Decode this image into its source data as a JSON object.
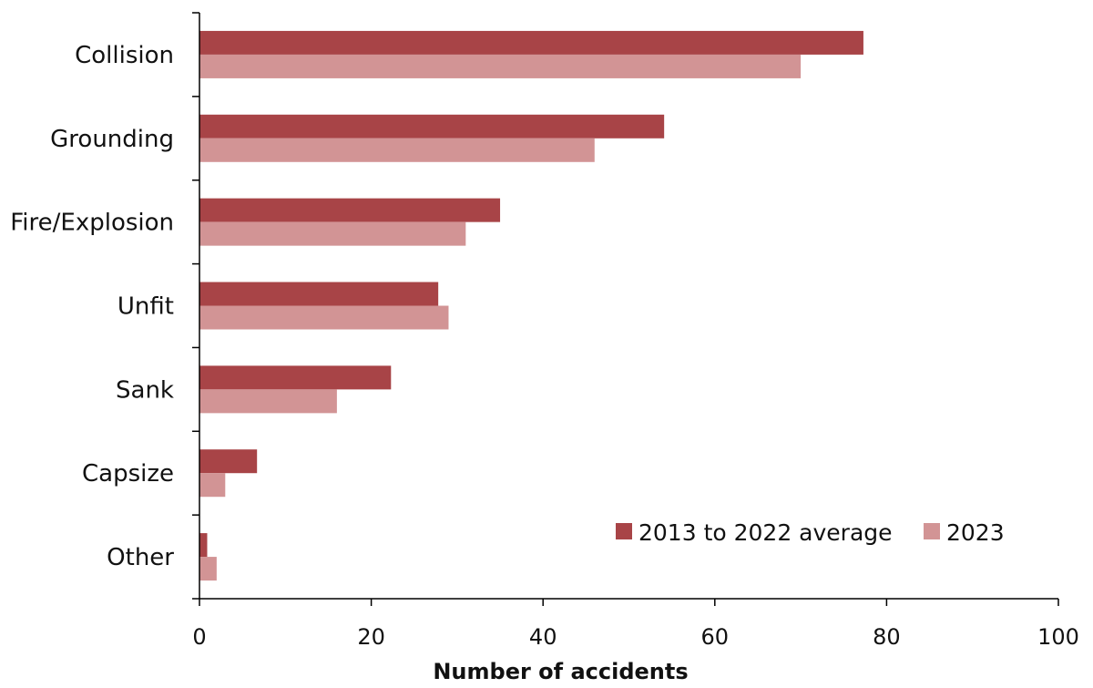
{
  "chart_data": {
    "type": "bar",
    "orientation": "horizontal",
    "categories": [
      "Collision",
      "Grounding",
      "Fire/Explosion",
      "Unfit",
      "Sank",
      "Capsize",
      "Other"
    ],
    "series": [
      {
        "name": "2013 to 2022 average",
        "color": "#a84447",
        "values": [
          77.3,
          54.1,
          35.0,
          27.8,
          22.3,
          6.7,
          0.9
        ]
      },
      {
        "name": "2023",
        "color": "#d29495",
        "values": [
          70,
          46,
          31,
          29,
          16,
          3,
          2
        ]
      }
    ],
    "xlabel": "Number of accidents",
    "ylabel": "",
    "xlim": [
      0,
      100
    ],
    "xticks": [
      0,
      20,
      40,
      60,
      80,
      100
    ],
    "xtick_labels": [
      "0",
      "20",
      "40",
      "60",
      "80",
      "100"
    ],
    "grid": false,
    "legend_position": "bottom-right"
  }
}
